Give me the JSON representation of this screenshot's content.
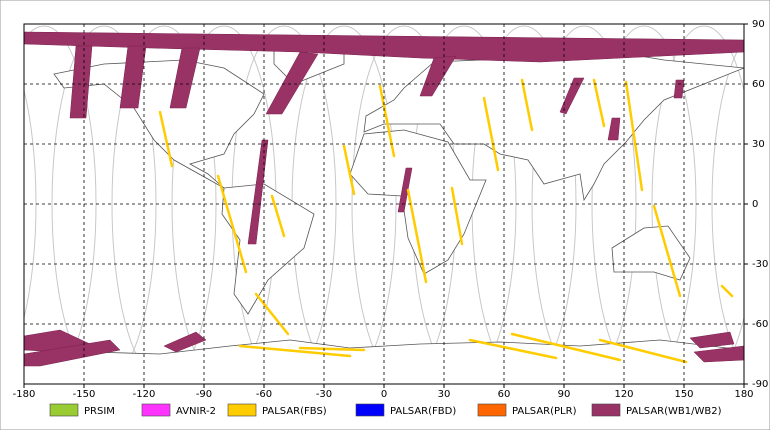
{
  "chart_data": {
    "type": "map",
    "xlim": [
      -180,
      180
    ],
    "ylim": [
      -90,
      90
    ],
    "xticks": [
      -180,
      -150,
      -120,
      -90,
      -60,
      -30,
      0,
      30,
      60,
      90,
      120,
      150,
      180
    ],
    "yticks": [
      -90,
      -60,
      -30,
      0,
      30,
      60,
      90
    ],
    "grid": true,
    "series": [
      {
        "name": "PRSIM",
        "color": "#99cc33"
      },
      {
        "name": "AVNIR-2",
        "color": "#ff33ff"
      },
      {
        "name": "PALSAR(FBS)",
        "color": "#ffcc00"
      },
      {
        "name": "PALSAR(FBD)",
        "color": "#0000ff"
      },
      {
        "name": "PALSAR(PLR)",
        "color": "#ff6600"
      },
      {
        "name": "PALSAR(WB1/WB2)",
        "color": "#993366"
      }
    ]
  }
}
